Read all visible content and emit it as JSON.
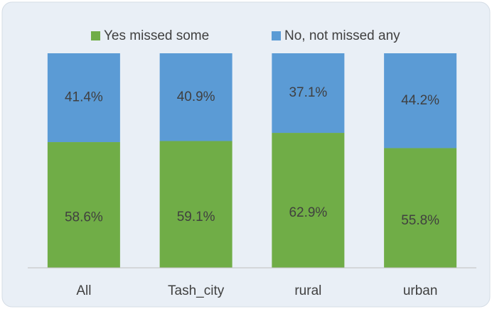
{
  "chart_data": {
    "type": "stacked_bar",
    "categories": [
      "All",
      "Tash_city",
      "rural",
      "urban"
    ],
    "series": [
      {
        "name": "Yes missed some",
        "color": "#70ad47",
        "values": [
          58.6,
          59.1,
          62.9,
          55.8
        ],
        "value_labels": [
          "58.6%",
          "59.1%",
          "62.9%",
          "55.8%"
        ]
      },
      {
        "name": "No, not missed any",
        "color": "#5b9bd5",
        "values": [
          41.4,
          40.9,
          37.1,
          44.2
        ],
        "value_labels": [
          "41.4%",
          "40.9%",
          "37.1%",
          "44.2%"
        ]
      }
    ],
    "legend": "top"
  }
}
